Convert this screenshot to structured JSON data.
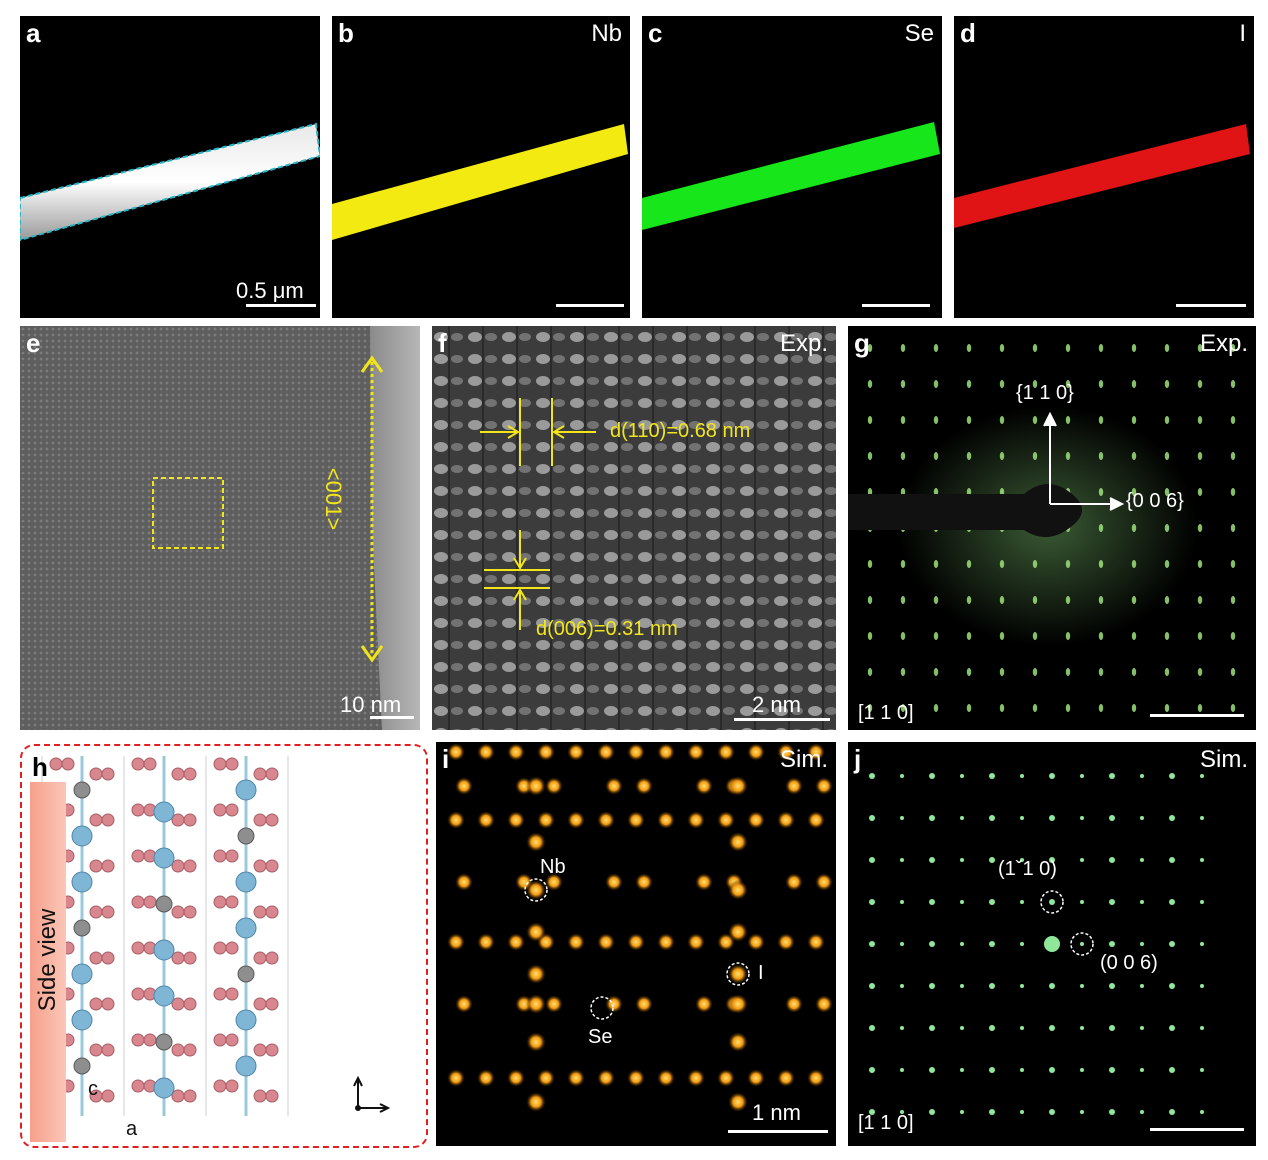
{
  "row1": {
    "a": {
      "letter": "a",
      "scale": "0.5 μm"
    },
    "b": {
      "letter": "b",
      "element": "Nb",
      "color": "#f3ea12"
    },
    "c": {
      "letter": "c",
      "element": "Se",
      "color": "#16e61a"
    },
    "d": {
      "letter": "d",
      "element": "I",
      "color": "#e01414"
    }
  },
  "row2": {
    "e": {
      "letter": "e",
      "direction": "<001>",
      "scale": "10 nm"
    },
    "f": {
      "letter": "f",
      "tag": "Exp.",
      "d110": "d(110)=0.68 nm",
      "d006": "d(006)=0.31 nm",
      "scale": "2 nm"
    },
    "g": {
      "letter": "g",
      "tag": "Exp.",
      "v110": "{1 1 0}",
      "v006": "{0 0 6}",
      "zone": "[1 1 0]"
    }
  },
  "row3": {
    "h": {
      "letter": "h",
      "side": "Side view",
      "axis_c": "c",
      "axis_a": "a"
    },
    "i": {
      "letter": "i",
      "tag": "Sim.",
      "nb": "Nb",
      "se": "Se",
      "i_atom": "I",
      "scale": "1 nm"
    },
    "j": {
      "letter": "j",
      "tag": "Sim.",
      "s110": "(1ˇ1 0)",
      "s006": "(0 0 6)",
      "zone": "[1 1 0]"
    }
  }
}
